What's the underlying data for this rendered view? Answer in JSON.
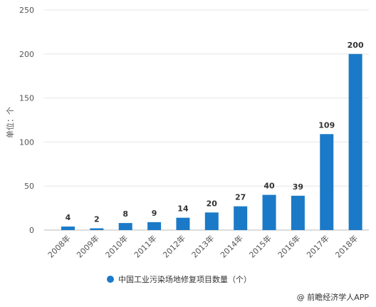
{
  "chart_data": {
    "type": "bar",
    "categories": [
      "2008年",
      "2009年",
      "2010年",
      "2011年",
      "2012年",
      "2013年",
      "2014年",
      "2015年",
      "2016年",
      "2017年",
      "2018年"
    ],
    "series": [
      {
        "name": "中国工业污染场地修复项目数量（个）",
        "values": [
          4,
          2,
          8,
          9,
          14,
          20,
          27,
          40,
          39,
          109,
          200
        ]
      }
    ],
    "ylabel": "单位：个",
    "ylim": [
      0,
      250
    ],
    "yticks": [
      0,
      50,
      100,
      150,
      200,
      250
    ],
    "grid": true,
    "legend": "bottom",
    "bar_color": "#1b7ac7"
  },
  "source": "@ 前瞻经济学人APP"
}
